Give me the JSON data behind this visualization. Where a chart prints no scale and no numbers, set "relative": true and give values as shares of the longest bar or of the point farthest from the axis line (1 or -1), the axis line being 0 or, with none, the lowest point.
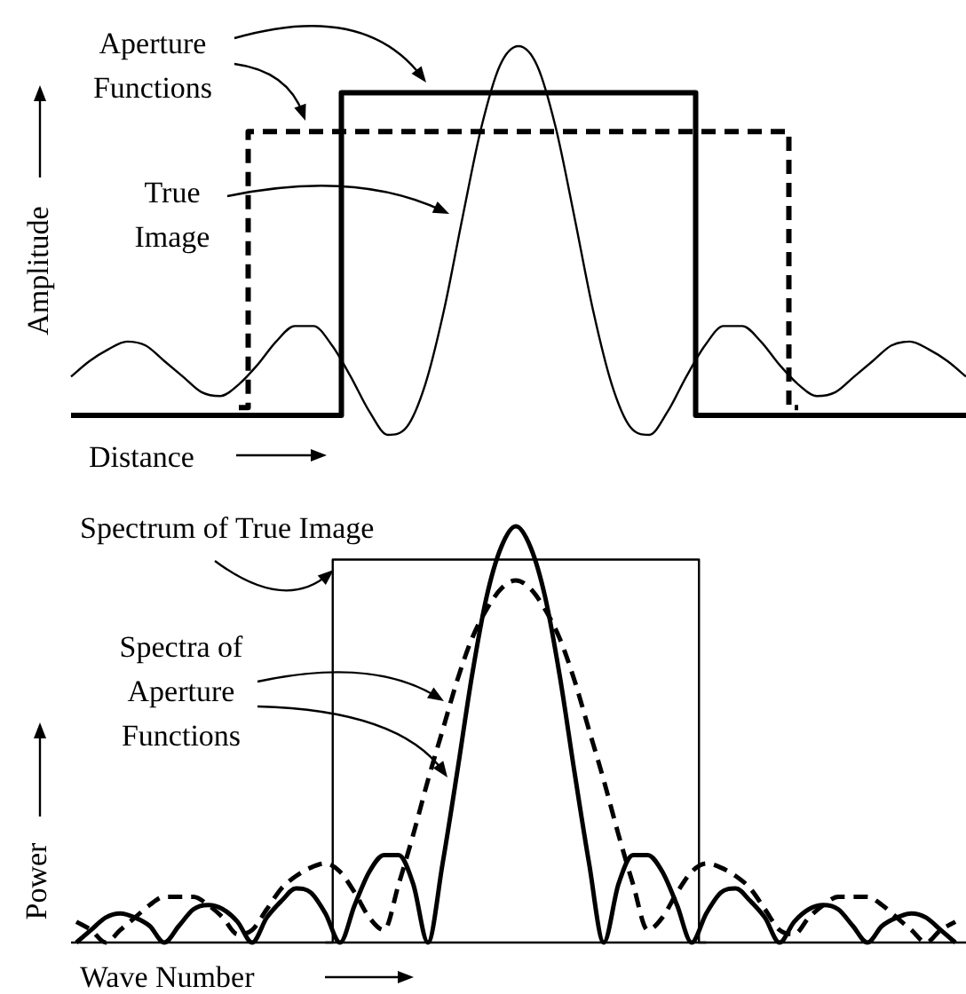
{
  "chart_data": [
    {
      "type": "line",
      "relative": true,
      "xlabel": "Distance",
      "ylabel": "Amplitude",
      "annotations": [
        "Aperture Functions",
        "True Image"
      ],
      "categories": [
        null,
        null,
        null,
        null,
        null,
        null,
        null,
        null,
        null,
        null,
        null,
        null,
        null,
        null,
        null,
        null,
        null,
        null,
        null,
        null,
        null,
        null,
        null,
        null,
        null,
        null,
        null,
        null,
        null,
        null,
        null,
        null,
        null,
        null,
        null,
        null,
        null,
        null,
        null,
        null,
        null,
        null,
        null,
        null,
        null,
        null,
        null,
        null,
        null
      ],
      "series": [
        {
          "type": "line",
          "color": "#000000",
          "values": [
            0.15,
            0.19,
            0.22,
            0.24,
            0.23,
            0.19,
            0.15,
            0.11,
            0.1,
            0.13,
            0.18,
            0.24,
            0.28,
            0.28,
            0.23,
            0.15,
            0.06,
            0,
            0.02,
            0.13,
            0.32,
            0.56,
            0.79,
            0.95,
            1,
            0.95,
            0.79,
            0.56,
            0.32,
            0.13,
            0.02,
            0,
            0.06,
            0.15,
            0.23,
            0.28,
            0.28,
            0.24,
            0.18,
            0.13,
            0.1,
            0.11,
            0.15,
            0.19,
            0.23,
            0.24,
            0.22,
            0.19,
            0.15
          ]
        },
        {
          "type": "step",
          "color": "#000000",
          "line_style": "solid",
          "values": [
            0.05,
            0.05,
            0.05,
            0.05,
            0.05,
            0.05,
            0.05,
            0.05,
            0.05,
            0.05,
            0.05,
            0.05,
            0.05,
            0.05,
            0.05,
            0.88,
            0.88,
            0.88,
            0.88,
            0.88,
            0.88,
            0.88,
            0.88,
            0.88,
            0.88,
            0.88,
            0.88,
            0.88,
            0.88,
            0.88,
            0.88,
            0.88,
            0.88,
            0.88,
            0.05,
            0.05,
            0.05,
            0.05,
            0.05,
            0.05,
            0.05,
            0.05,
            0.05,
            0.05,
            0.05,
            0.05,
            0.05,
            0.05,
            0.05
          ]
        },
        {
          "type": "step",
          "color": "#000000",
          "line_style": "dashed",
          "values": [
            null,
            null,
            null,
            null,
            null,
            null,
            null,
            null,
            null,
            0.07,
            0.78,
            0.78,
            0.78,
            0.78,
            0.78,
            0.78,
            0.78,
            0.78,
            0.78,
            0.78,
            0.78,
            0.78,
            0.78,
            0.78,
            0.78,
            0.78,
            0.78,
            0.78,
            0.78,
            0.78,
            0.78,
            0.78,
            0.78,
            0.78,
            0.78,
            0.78,
            0.78,
            0.78,
            0.78,
            0.07,
            null,
            null,
            null,
            null,
            null,
            null,
            null,
            null,
            null
          ]
        }
      ]
    },
    {
      "type": "line",
      "relative": true,
      "xlabel": "Wave Number",
      "ylabel": "Power",
      "annotations": [
        "Spectrum of True Image",
        "Spectra of Aperture Functions"
      ],
      "ref_lines": [
        {
          "axis": "y",
          "value": 0,
          "color": "#000000"
        }
      ],
      "categories": [
        null,
        null,
        null,
        null,
        null,
        null,
        null,
        null,
        null,
        null,
        null,
        null,
        null,
        null,
        null,
        null,
        null,
        null,
        null,
        null,
        null,
        null,
        null,
        null,
        null,
        null,
        null,
        null,
        null,
        null,
        null,
        null,
        null,
        null,
        null,
        null,
        null,
        null,
        null,
        null,
        null,
        null,
        null,
        null,
        null,
        null,
        null,
        null,
        null,
        null,
        null,
        null,
        null,
        null,
        null,
        null,
        null,
        null,
        null,
        null,
        null
      ],
      "series": [
        {
          "type": "step",
          "color": "#000000",
          "values": [
            null,
            null,
            null,
            null,
            null,
            null,
            null,
            null,
            null,
            null,
            null,
            null,
            null,
            null,
            null,
            null,
            null,
            0,
            0.92,
            0.92,
            0.92,
            0.92,
            0.92,
            0.92,
            0.92,
            0.92,
            0.92,
            0.92,
            0.92,
            0.92,
            0.92,
            0.92,
            0.92,
            0.92,
            0.92,
            0.92,
            0.92,
            0.92,
            0.92,
            0.92,
            0.92,
            0.92,
            0.92,
            0,
            null,
            null,
            null,
            null,
            null,
            null,
            null,
            null,
            null,
            null,
            null,
            null,
            null,
            null,
            null,
            null,
            null
          ]
        },
        {
          "type": "line",
          "color": "#000000",
          "line_style": "dashed",
          "values": [
            0.05,
            0.03,
            0,
            0.03,
            0.06,
            0.09,
            0.11,
            0.11,
            0.11,
            0.09,
            0.06,
            0.02,
            0.03,
            0.08,
            0.13,
            0.16,
            0.18,
            0.19,
            0.17,
            0.12,
            0.06,
            0.03,
            0.14,
            0.26,
            0.39,
            0.51,
            0.63,
            0.73,
            0.8,
            0.85,
            0.87,
            0.85,
            0.8,
            0.73,
            0.63,
            0.51,
            0.39,
            0.26,
            0.14,
            0.03,
            0.06,
            0.12,
            0.17,
            0.19,
            0.18,
            0.16,
            0.13,
            0.08,
            0.03,
            0.02,
            0.06,
            0.09,
            0.11,
            0.11,
            0.11,
            0.09,
            0.06,
            0.03,
            0,
            0.03,
            0.05
          ]
        },
        {
          "type": "line",
          "color": "#000000",
          "line_style": "solid",
          "values": [
            0,
            0.03,
            0.06,
            0.07,
            0.06,
            0.04,
            0,
            0.04,
            0.08,
            0.09,
            0.08,
            0.05,
            0,
            0.06,
            0.1,
            0.13,
            0.12,
            0.07,
            0,
            0.09,
            0.17,
            0.21,
            0.21,
            0.14,
            0,
            0.19,
            0.41,
            0.64,
            0.83,
            0.95,
            1,
            0.95,
            0.83,
            0.64,
            0.41,
            0.19,
            0,
            0.14,
            0.21,
            0.21,
            0.17,
            0.09,
            0,
            0.07,
            0.12,
            0.13,
            0.1,
            0.06,
            0,
            0.05,
            0.08,
            0.09,
            0.08,
            0.04,
            0,
            0.04,
            0.06,
            0.07,
            0.06,
            0.03,
            0
          ]
        }
      ]
    }
  ]
}
